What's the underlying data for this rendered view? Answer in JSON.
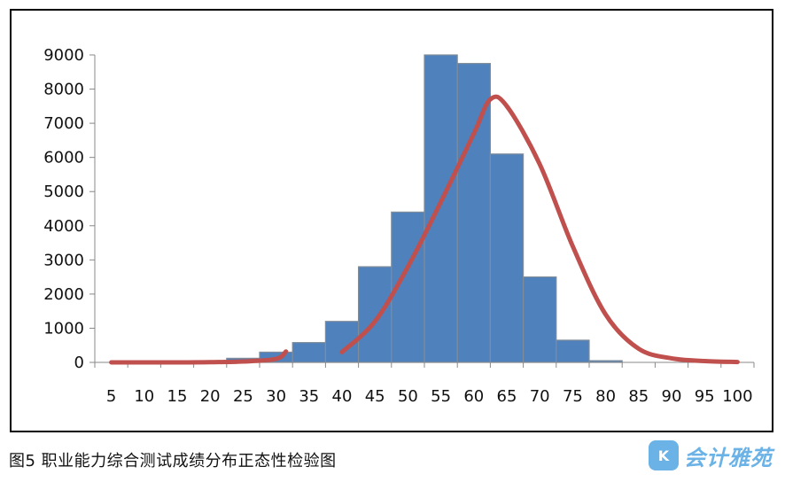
{
  "caption": "图5 职业能力综合测试成绩分布正态性检验图",
  "watermark": {
    "badge": "K",
    "text": "会计雅苑"
  },
  "colors": {
    "bar_fill": "#4f81bd",
    "bar_edge": "#7f8c99",
    "curve": "#c0504d"
  },
  "chart_data": {
    "type": "bar",
    "xlabel": "",
    "ylabel": "",
    "ylim": [
      0,
      9000
    ],
    "yticks": [
      0,
      1000,
      2000,
      3000,
      4000,
      5000,
      6000,
      7000,
      8000,
      9000
    ],
    "categories": [
      "5",
      "10",
      "15",
      "20",
      "25",
      "30",
      "35",
      "40",
      "45",
      "50",
      "55",
      "60",
      "65",
      "70",
      "75",
      "80",
      "85",
      "90",
      "95",
      "100"
    ],
    "values": [
      0,
      0,
      0,
      50,
      120,
      300,
      580,
      1200,
      2800,
      4400,
      9000,
      8750,
      6100,
      2500,
      650,
      50,
      0,
      0,
      0,
      0
    ],
    "curve_segments": [
      [
        [
          5,
          0
        ],
        [
          10,
          0
        ],
        [
          15,
          0
        ],
        [
          20,
          5
        ],
        [
          25,
          25
        ],
        [
          30,
          100
        ],
        [
          31.5,
          320
        ]
      ],
      [
        [
          40,
          300
        ],
        [
          45,
          1200
        ],
        [
          50,
          2800
        ],
        [
          55,
          4700
        ],
        [
          60,
          6700
        ],
        [
          62.5,
          7700
        ],
        [
          65,
          7500
        ],
        [
          70,
          5800
        ],
        [
          75,
          3400
        ],
        [
          80,
          1400
        ],
        [
          85,
          400
        ],
        [
          90,
          120
        ],
        [
          95,
          40
        ],
        [
          100,
          10
        ]
      ]
    ]
  }
}
